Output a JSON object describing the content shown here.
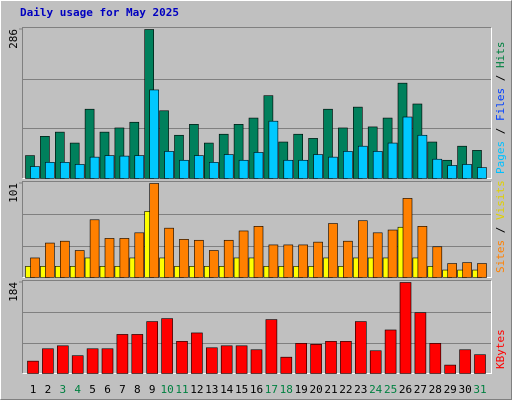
{
  "chart_data": [
    {
      "type": "bar",
      "title": "Daily usage for May 2025",
      "ylim": [
        0,
        286
      ],
      "yticks": [
        286
      ],
      "y_label_parts": [
        {
          "text": "Pages",
          "color": "#00c0ff"
        },
        {
          "text": " / ",
          "color": "#000000"
        },
        {
          "text": "Files",
          "color": "#0040ff"
        },
        {
          "text": " / ",
          "color": "#000000"
        },
        {
          "text": "Hits",
          "color": "#008040"
        }
      ],
      "series": [
        {
          "name": "Hits",
          "color": "#00805c",
          "values": [
            44,
            81,
            89,
            68,
            133,
            89,
            97,
            108,
            286,
            130,
            83,
            104,
            68,
            85,
            104,
            116,
            159,
            70,
            85,
            77,
            133,
            97,
            137,
            99,
            116,
            183,
            143,
            70,
            35,
            62,
            54
          ]
        },
        {
          "name": "Files",
          "color": "#00c8ff",
          "values": [
            23,
            31,
            31,
            27,
            41,
            44,
            43,
            44,
            170,
            52,
            35,
            44,
            31,
            46,
            35,
            50,
            110,
            35,
            35,
            46,
            41,
            52,
            62,
            52,
            68,
            118,
            83,
            37,
            25,
            27,
            21
          ]
        }
      ]
    },
    {
      "type": "bar",
      "ylim": [
        0,
        101
      ],
      "yticks": [
        101
      ],
      "y_label_parts": [
        {
          "text": "Sites",
          "color": "#ff8000"
        },
        {
          "text": " / ",
          "color": "#000000"
        },
        {
          "text": "Visits",
          "color": "#e0d000"
        }
      ],
      "series": [
        {
          "name": "Visits",
          "color": "#ffff00",
          "values": [
            12,
            12,
            12,
            12,
            21,
            12,
            12,
            21,
            71,
            21,
            12,
            12,
            12,
            12,
            21,
            21,
            12,
            12,
            12,
            12,
            21,
            12,
            21,
            21,
            21,
            54,
            21,
            12,
            8,
            8,
            8
          ]
        },
        {
          "name": "Sites",
          "color": "#ff8000",
          "values": [
            21,
            37,
            39,
            29,
            62,
            42,
            42,
            48,
            101,
            53,
            41,
            40,
            29,
            40,
            50,
            55,
            35,
            35,
            35,
            38,
            58,
            39,
            61,
            48,
            51,
            85,
            55,
            33,
            15,
            16,
            15
          ]
        }
      ]
    },
    {
      "type": "bar",
      "ylim": [
        0,
        184
      ],
      "yticks": [
        184
      ],
      "y_label_parts": [
        {
          "text": "KBytes",
          "color": "#ff0000"
        }
      ],
      "categories": [
        "1",
        "2",
        "3",
        "4",
        "5",
        "6",
        "7",
        "8",
        "9",
        "10",
        "11",
        "12",
        "13",
        "14",
        "15",
        "16",
        "17",
        "18",
        "19",
        "20",
        "21",
        "22",
        "23",
        "24",
        "25",
        "26",
        "27",
        "28",
        "29",
        "30",
        "31"
      ],
      "category_colors": [
        "#000000",
        "#000000",
        "#008040",
        "#008040",
        "#000000",
        "#000000",
        "#000000",
        "#000000",
        "#000000",
        "#008040",
        "#008040",
        "#000000",
        "#000000",
        "#000000",
        "#000000",
        "#000000",
        "#008040",
        "#008040",
        "#000000",
        "#000000",
        "#000000",
        "#000000",
        "#000000",
        "#008040",
        "#008040",
        "#000000",
        "#000000",
        "#000000",
        "#000000",
        "#000000",
        "#008040"
      ],
      "series": [
        {
          "name": "KBytes",
          "color": "#ff0000",
          "values": [
            25,
            50,
            56,
            36,
            50,
            50,
            79,
            79,
            105,
            111,
            65,
            82,
            52,
            56,
            56,
            48,
            109,
            33,
            61,
            59,
            65,
            65,
            105,
            46,
            88,
            184,
            123,
            61,
            17,
            48,
            38
          ]
        }
      ]
    }
  ]
}
